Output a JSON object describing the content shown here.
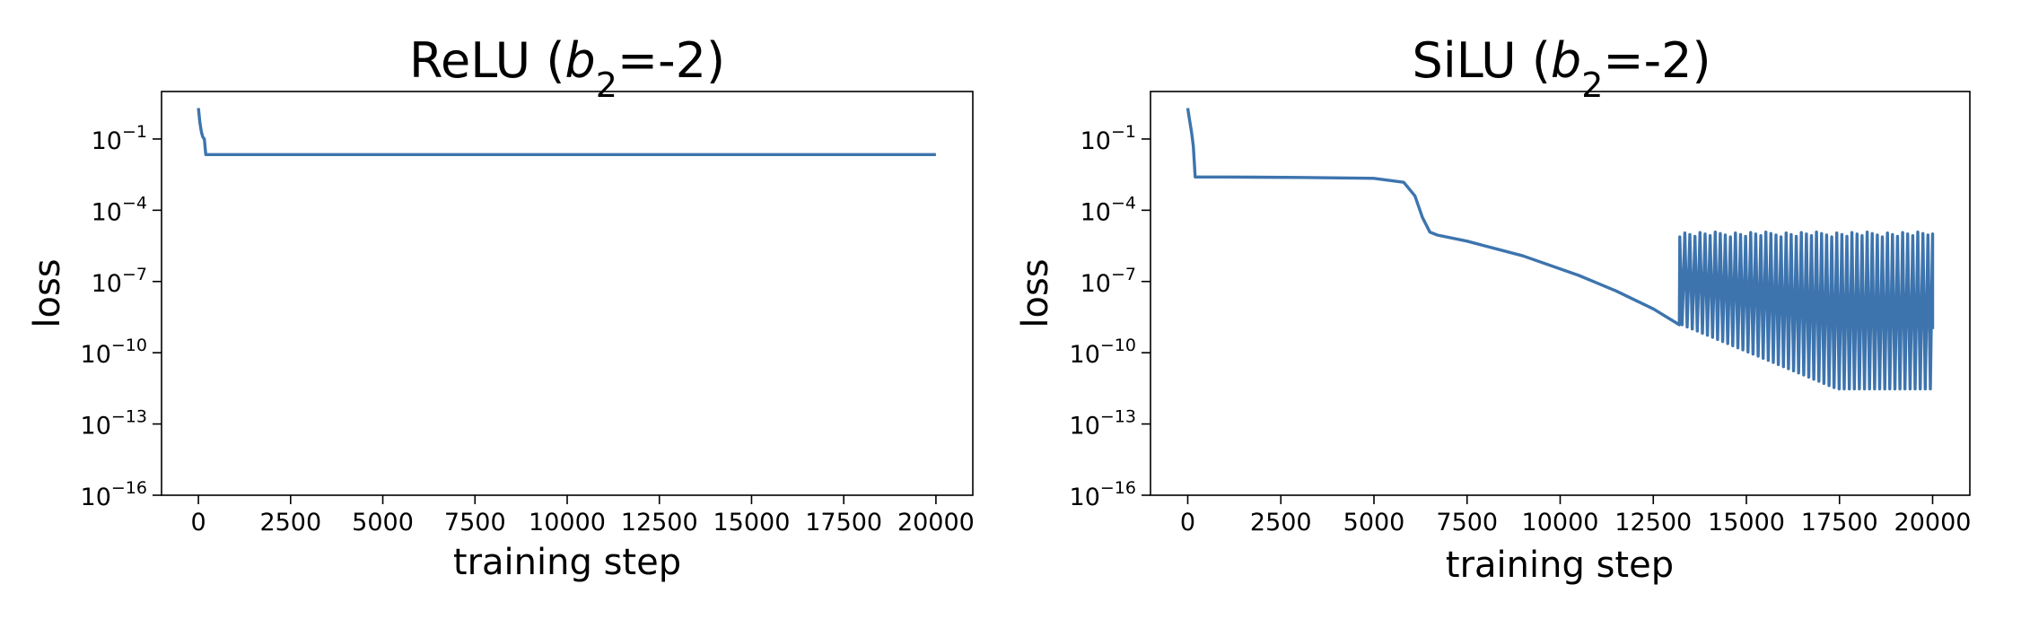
{
  "chart_data": [
    {
      "type": "line",
      "title": "ReLU (b2=-2)",
      "title_parts": {
        "before": "ReLU (",
        "var": "b",
        "sub": "2",
        "after": "=-2)"
      },
      "xlabel": "training step",
      "ylabel": "loss",
      "xlim": [
        -1000,
        21000
      ],
      "ylim": [
        1e-16,
        10
      ],
      "yscale": "log",
      "xticks": [
        0,
        2500,
        5000,
        7500,
        10000,
        12500,
        15000,
        17500,
        20000
      ],
      "yticks": [
        {
          "base": "10",
          "exp": "−1",
          "value": 0.1
        },
        {
          "base": "10",
          "exp": "−4",
          "value": 0.0001
        },
        {
          "base": "10",
          "exp": "−7",
          "value": 1e-07
        },
        {
          "base": "10",
          "exp": "−10",
          "value": 1e-10
        },
        {
          "base": "10",
          "exp": "−13",
          "value": 1e-13
        },
        {
          "base": "10",
          "exp": "−16",
          "value": 1e-16
        }
      ],
      "grid": false,
      "series": [
        {
          "color": "#3d74ae",
          "x": [
            0,
            40,
            80,
            120,
            160,
            200,
            1000,
            5000,
            10000,
            15000,
            20000
          ],
          "y": [
            2.0,
            0.5,
            0.2,
            0.12,
            0.1,
            0.022,
            0.022,
            0.022,
            0.022,
            0.022,
            0.022
          ]
        }
      ]
    },
    {
      "type": "line",
      "title": "SiLU (b2=-2)",
      "title_parts": {
        "before": "SiLU (",
        "var": "b",
        "sub": "2",
        "after": "=-2)"
      },
      "xlabel": "training step",
      "ylabel": "loss",
      "xlim": [
        -1000,
        21000
      ],
      "ylim": [
        1e-16,
        10
      ],
      "yscale": "log",
      "xticks": [
        0,
        2500,
        5000,
        7500,
        10000,
        12500,
        15000,
        17500,
        20000
      ],
      "yticks": [
        {
          "base": "10",
          "exp": "−1",
          "value": 0.1
        },
        {
          "base": "10",
          "exp": "−4",
          "value": 0.0001
        },
        {
          "base": "10",
          "exp": "−7",
          "value": 1e-07
        },
        {
          "base": "10",
          "exp": "−10",
          "value": 1e-10
        },
        {
          "base": "10",
          "exp": "−13",
          "value": 1e-13
        },
        {
          "base": "10",
          "exp": "−16",
          "value": 1e-16
        }
      ],
      "grid": false,
      "series": [
        {
          "color": "#3d74ae",
          "x": [
            0,
            50,
            100,
            150,
            200,
            1000,
            3000,
            5000,
            5800,
            6100,
            6300,
            6500,
            6700,
            7500,
            9000,
            10500,
            11500,
            12500,
            13200
          ],
          "y": [
            2.0,
            0.6,
            0.2,
            0.05,
            0.0025,
            0.0025,
            0.0024,
            0.0022,
            0.0015,
            0.0004,
            5e-05,
            1.2e-05,
            9e-06,
            5e-06,
            1.2e-06,
            1.8e-07,
            4e-08,
            7e-09,
            1.5e-09
          ]
        }
      ],
      "oscillation": {
        "start": 13200,
        "end": 20000,
        "cycles": 50,
        "upper": 1e-05,
        "lower_start": 1.5e-09,
        "lower_mid": 3e-12,
        "lower_end": 3e-12,
        "end_value": 1e-09
      }
    }
  ]
}
